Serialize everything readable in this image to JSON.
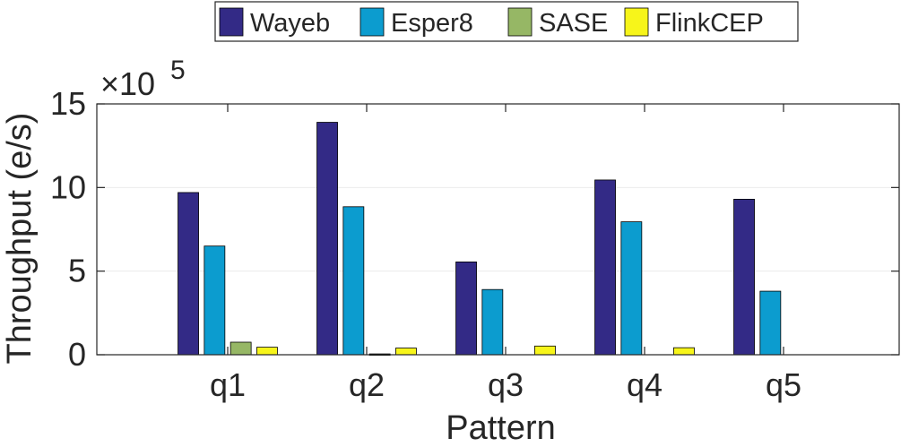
{
  "chart_data": {
    "type": "bar",
    "categories": [
      "q1",
      "q2",
      "q3",
      "q4",
      "q5"
    ],
    "series": [
      {
        "name": "Wayeb",
        "color": "#332a86",
        "values": [
          9.7,
          13.9,
          5.55,
          10.45,
          9.3
        ]
      },
      {
        "name": "Esper8",
        "color": "#0c9ccf",
        "values": [
          6.5,
          8.85,
          3.9,
          7.95,
          3.8
        ]
      },
      {
        "name": "SASE",
        "color": "#96b765",
        "values": [
          0.75,
          0.05,
          0,
          0,
          0
        ]
      },
      {
        "name": "FlinkCEP",
        "color": "#f7f51a",
        "values": [
          0.45,
          0.4,
          0.52,
          0.42,
          0
        ]
      }
    ],
    "xlabel": "Pattern",
    "ylabel": "Throughput (e/s)",
    "ylim": [
      0,
      15
    ],
    "yticks": [
      0,
      5,
      10,
      15
    ],
    "exponent_base": "×10",
    "exponent_power": "5",
    "grid": true,
    "legend_position": "top"
  }
}
